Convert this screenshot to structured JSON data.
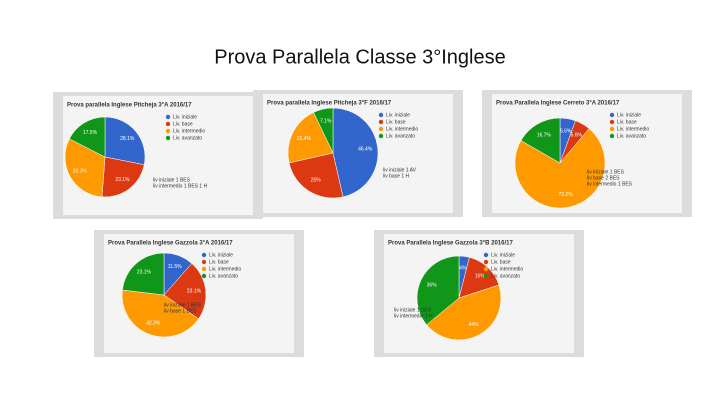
{
  "title": "Prova Parallela Classe 3°Inglese",
  "chart_data": [
    {
      "type": "pie",
      "title": "Prova parallela Inglese Pitcheja 3°A 2016/17",
      "categories": [
        "Liv. iniziale",
        "Liv. base",
        "Liv. intermedio",
        "Liv. avanzato"
      ],
      "values": [
        28.1,
        23.1,
        31.3,
        17.5
      ],
      "value_labels": [
        "28.1%",
        "23.1%",
        "31.3%",
        "17.5%"
      ],
      "colors": [
        "#3366cc",
        "#dc3912",
        "#ff9900",
        "#109618"
      ],
      "notes": [
        "liv iniziale 1 BES",
        "liv intermedio 1 BES 1 H"
      ]
    },
    {
      "type": "pie",
      "title": "Prova parallela Inglese Pitcheja 3°F 2016/17",
      "categories": [
        "Liv. iniziale",
        "Liv. base",
        "Liv. intermedio",
        "Liv. avanzato"
      ],
      "values": [
        46.4,
        25.0,
        21.4,
        7.1
      ],
      "value_labels": [
        "46.4%",
        "25%",
        "21.4%",
        "7.1%"
      ],
      "colors": [
        "#3366cc",
        "#dc3912",
        "#ff9900",
        "#109618"
      ],
      "notes": [
        "liv iniziale 1 AV",
        "liv base 1 H"
      ]
    },
    {
      "type": "pie",
      "title": "Prova Parallela Inglese Cerreto 3°A 2016/17",
      "categories": [
        "Liv. iniziale",
        "Liv. base",
        "Liv. intermedio",
        "Liv. avanzato"
      ],
      "values": [
        5.6,
        5.6,
        72.2,
        16.7
      ],
      "value_labels": [
        "5.6%",
        "5.6%",
        "72.2%",
        "16.7%"
      ],
      "colors": [
        "#3366cc",
        "#dc3912",
        "#ff9900",
        "#109618"
      ],
      "notes": [
        "liv iniziale 1 BES",
        "liv base 2 BES",
        "liv intermedio 1 BES"
      ]
    },
    {
      "type": "pie",
      "title": "Prova Parallela Inglese Gazzola 3°A 2016/17",
      "categories": [
        "Liv. iniziale",
        "Liv. base",
        "Liv. intermedio",
        "Liv. avanzato"
      ],
      "values": [
        11.5,
        23.1,
        42.3,
        23.1
      ],
      "value_labels": [
        "11.5%",
        "23.1%",
        "42.3%",
        "23.1%"
      ],
      "colors": [
        "#3366cc",
        "#dc3912",
        "#ff9900",
        "#109618"
      ],
      "notes": [
        "liv iniziale 1 BES",
        "liv base 1 BES"
      ]
    },
    {
      "type": "pie",
      "title": "Prova Parallela Inglese Gazzola 3°B 2016/17",
      "categories": [
        "Liv. iniziale",
        "Liv. base",
        "Liv. intermedio",
        "Liv. avanzato"
      ],
      "values": [
        4,
        16,
        44,
        36
      ],
      "value_labels": [
        "4%",
        "16%",
        "44%",
        "36%"
      ],
      "colors": [
        "#3366cc",
        "#dc3912",
        "#ff9900",
        "#109618"
      ],
      "notes": [
        "liv iniziale 1 BES",
        "liv intermedio 1 H"
      ]
    }
  ]
}
